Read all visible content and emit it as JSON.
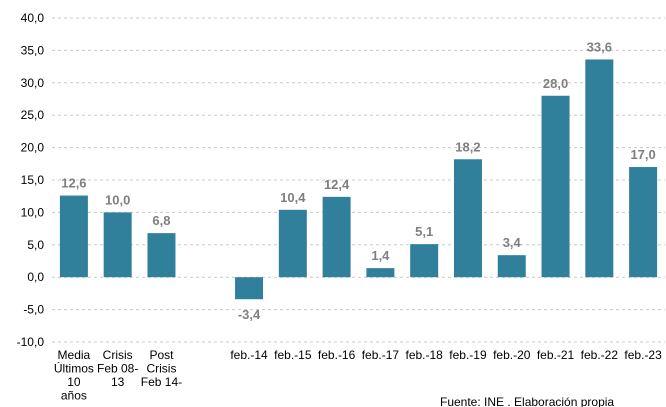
{
  "chart_data": {
    "type": "bar",
    "categories": [
      "Media\nÚltimos\n10\naños",
      "Crisis\nFeb 08-\n13",
      "Post\nCrisis\nFeb 14-",
      null,
      "feb.-14",
      "feb.-15",
      "feb.-16",
      "feb.-17",
      "feb.-18",
      "feb.-19",
      "feb.-20",
      "feb.-21",
      "feb.-22",
      "feb.-23"
    ],
    "values": [
      12.6,
      10.0,
      6.8,
      null,
      -3.4,
      10.4,
      12.4,
      1.4,
      5.1,
      18.2,
      3.4,
      28.0,
      33.6,
      17.0
    ],
    "value_labels": [
      "12,6",
      "10,0",
      "6,8",
      null,
      "-3,4",
      "10,4",
      "12,4",
      "1,4",
      "5,1",
      "18,2",
      "3,4",
      "28,0",
      "33,6",
      "17,0"
    ],
    "color": "#31809b",
    "ylim": [
      -10,
      40
    ],
    "yticks": [
      {
        "value": -10,
        "label": "-10,0"
      },
      {
        "value": -5,
        "label": "-5,0"
      },
      {
        "value": 0,
        "label": "0,0"
      },
      {
        "value": 5,
        "label": "5,0"
      },
      {
        "value": 10,
        "label": "10,0"
      },
      {
        "value": 15,
        "label": "15,0"
      },
      {
        "value": 20,
        "label": "20,0"
      },
      {
        "value": 25,
        "label": "25,0"
      },
      {
        "value": 30,
        "label": "30,0"
      },
      {
        "value": 35,
        "label": "35,0"
      },
      {
        "value": 40,
        "label": "40,0"
      }
    ],
    "grid": true,
    "source": "Fuente: INE . Elaboración propia"
  }
}
